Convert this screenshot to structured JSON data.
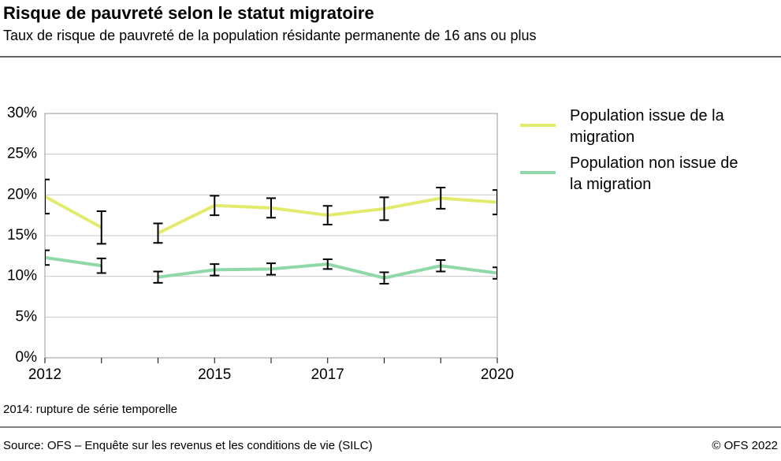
{
  "chart_data": {
    "type": "line",
    "title": "Risque de pauvreté selon le statut migratoire",
    "subtitle": "Taux de risque de pauvreté de la population résidante permanente de 16 ans ou plus",
    "note": "2014: rupture de série temporelle",
    "source": "Source: OFS – Enquête sur les revenus et les conditions de vie (SILC)",
    "copyright": "© OFS 2022",
    "x": [
      2012,
      2013,
      2014,
      2015,
      2016,
      2017,
      2018,
      2019,
      2020
    ],
    "series_break": 2014,
    "series": [
      {
        "name": "Population issue de la migration",
        "color": "#e3eb6e",
        "values": [
          19.8,
          16.0,
          15.3,
          18.7,
          18.4,
          17.5,
          18.3,
          19.6,
          19.1
        ],
        "errors": [
          2.1,
          2.0,
          1.2,
          1.2,
          1.2,
          1.15,
          1.4,
          1.3,
          1.5
        ]
      },
      {
        "name": "Population non issue de la migration",
        "color": "#8fd9a8",
        "values": [
          12.3,
          11.3,
          9.9,
          10.8,
          10.9,
          11.5,
          9.8,
          11.3,
          10.4
        ],
        "errors": [
          0.9,
          0.9,
          0.7,
          0.7,
          0.7,
          0.6,
          0.7,
          0.7,
          0.7
        ]
      }
    ],
    "xlim": [
      2012,
      2020
    ],
    "xticks": [
      2012,
      2015,
      2017,
      2020
    ],
    "ylim": [
      0,
      30
    ],
    "yticks": [
      {
        "value": 0,
        "label": "0%"
      },
      {
        "value": 5,
        "label": "5%"
      },
      {
        "value": 10,
        "label": "10%"
      },
      {
        "value": 15,
        "label": "15%"
      },
      {
        "value": 20,
        "label": "20%"
      },
      {
        "value": 25,
        "label": "25%"
      },
      {
        "value": 30,
        "label": "30%"
      }
    ],
    "grid": true,
    "legend": "right"
  }
}
